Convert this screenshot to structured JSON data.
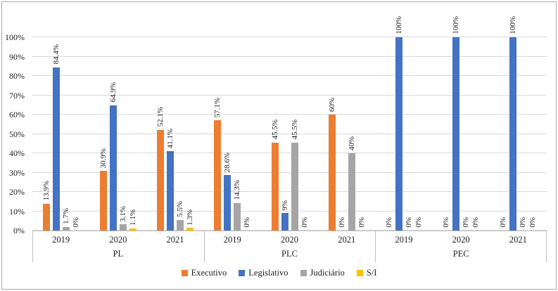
{
  "chart_data": {
    "type": "bar",
    "title": "",
    "xlabel": "",
    "ylabel": "",
    "groups": [
      "PL",
      "PLC",
      "PEC"
    ],
    "years": [
      "2019",
      "2020",
      "2021"
    ],
    "categories": [
      "PL 2019",
      "PL 2020",
      "PL 2021",
      "PLC 2019",
      "PLC 2020",
      "PLC 2021",
      "PEC 2019",
      "PEC 2020",
      "PEC 2021"
    ],
    "series": [
      {
        "name": "Executivo",
        "color": "#ED7D31",
        "values": [
          13.9,
          30.9,
          52.1,
          57.1,
          45.5,
          60,
          0,
          0,
          0
        ],
        "labels": [
          "13.9%",
          "30.9%",
          "52.1%",
          "57.1%",
          "45.5%",
          "60%",
          "0%",
          "0%",
          "0%"
        ]
      },
      {
        "name": "Legislativo",
        "color": "#4472C4",
        "values": [
          84.4,
          64.9,
          41.1,
          28.6,
          9,
          0,
          100,
          100,
          100
        ],
        "labels": [
          "84.4%",
          "64.9%",
          "41.1%",
          "28.6%",
          "9%",
          "0%",
          "100%",
          "100%",
          "100%"
        ]
      },
      {
        "name": "Judiciário",
        "color": "#A5A5A5",
        "values": [
          1.7,
          3.1,
          5.5,
          14.3,
          45.5,
          40,
          0,
          0,
          0
        ],
        "labels": [
          "1.7%",
          "3.1%",
          "5.5%",
          "14.3%",
          "45.5%",
          "40%",
          "0%",
          "0%",
          "0%"
        ]
      },
      {
        "name": "S/I",
        "color": "#FFC000",
        "values": [
          0,
          1.1,
          1.3,
          0,
          0,
          0,
          0,
          0,
          0
        ],
        "labels": [
          "0%",
          "1.1%",
          "1.3%",
          "0%",
          "0%",
          "0%",
          "0%",
          "0%",
          "0%"
        ]
      }
    ],
    "y_axis": {
      "ticks": [
        "0%",
        "10%",
        "20%",
        "30%",
        "40%",
        "50%",
        "60%",
        "70%",
        "80%",
        "90%",
        "100%"
      ],
      "min": 0,
      "max": 100,
      "step": 10
    },
    "grid": true,
    "legend_position": "bottom",
    "data_label_rotation": 90
  },
  "legend": {
    "items": [
      {
        "label": "Executivo",
        "color": "#ED7D31"
      },
      {
        "label": "Legislativo",
        "color": "#4472C4"
      },
      {
        "label": "Judiciário",
        "color": "#A5A5A5"
      },
      {
        "label": "S/I",
        "color": "#FFC000"
      }
    ]
  },
  "colors": {
    "gridline": "#D9D9D9",
    "axis_line": "#BFBFBF",
    "figure_border": "#A8A8A8",
    "text": "#1F1F1F"
  }
}
